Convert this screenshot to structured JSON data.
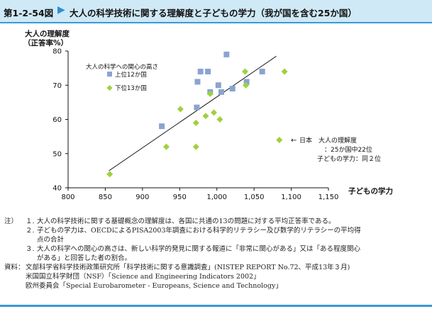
{
  "header": {
    "figure_number": "第1-2-54図",
    "arrow_icon": "right-triangle-icon",
    "title": "大人の科学技術に関する理解度と子どもの学力（我が国を含む25か国）"
  },
  "colors": {
    "header_bg": "#cfe9f6",
    "header_rule": "#3a9ad6",
    "arrow": "#2e8fd0",
    "top13_marker": "#8aa4cf",
    "bottom13_marker": "#9ed13f",
    "trend_line": "#111111",
    "axis": "#111111"
  },
  "chart_data": {
    "type": "scatter",
    "title": "",
    "ylabel_line1": "大人の理解度",
    "ylabel_line2": "（正答率%）",
    "xlabel": "子どもの学力",
    "xlim": [
      800,
      1150
    ],
    "ylim": [
      40,
      80
    ],
    "xticks": [
      "800",
      "850",
      "900",
      "950",
      "1,000",
      "1,050",
      "1,100",
      "1,150"
    ],
    "yticks": [
      "40",
      "50",
      "60",
      "70",
      "80"
    ],
    "xtick_values": [
      800,
      850,
      900,
      950,
      1000,
      1050,
      1100,
      1150
    ],
    "ytick_values": [
      40,
      50,
      60,
      70,
      80
    ],
    "grid": false,
    "legend": {
      "title": "大人の科学への関心の高さ",
      "placement": "top-left",
      "entries": [
        "上位12か国",
        "下位13か国"
      ]
    },
    "series": [
      {
        "name": "上位12か国",
        "marker": "square",
        "points": [
          {
            "x": 926,
            "y": 58
          },
          {
            "x": 973,
            "y": 63.5
          },
          {
            "x": 974,
            "y": 71
          },
          {
            "x": 978,
            "y": 74
          },
          {
            "x": 988,
            "y": 74
          },
          {
            "x": 991,
            "y": 68
          },
          {
            "x": 1002,
            "y": 70
          },
          {
            "x": 1006,
            "y": 68
          },
          {
            "x": 1013,
            "y": 79
          },
          {
            "x": 1021,
            "y": 69
          },
          {
            "x": 1040,
            "y": 71
          },
          {
            "x": 1061,
            "y": 74
          }
        ]
      },
      {
        "name": "下位13か国",
        "marker": "diamond",
        "points": [
          {
            "x": 856,
            "y": 44
          },
          {
            "x": 932,
            "y": 52
          },
          {
            "x": 951,
            "y": 63
          },
          {
            "x": 972,
            "y": 52
          },
          {
            "x": 972,
            "y": 59
          },
          {
            "x": 985,
            "y": 61
          },
          {
            "x": 991,
            "y": 67.5
          },
          {
            "x": 996,
            "y": 62
          },
          {
            "x": 1004,
            "y": 60
          },
          {
            "x": 1038,
            "y": 74
          },
          {
            "x": 1039,
            "y": 70
          },
          {
            "x": 1084,
            "y": 54
          },
          {
            "x": 1091,
            "y": 74
          }
        ]
      }
    ],
    "trend_line": {
      "x1": 855,
      "y1": 45,
      "x2": 1080,
      "y2": 78.5
    },
    "annotation": {
      "arrow": "←",
      "line1": "日本　大人の理解度",
      "line2": "：25か国中22位",
      "line3": "子どもの学力：同２位"
    }
  },
  "notes": {
    "label": "注）",
    "items": [
      {
        "num": "１.",
        "lines": [
          "大人の科学技術に関する基礎概念の理解度は、各国に共通の13の問題に対する平均正答率である。"
        ]
      },
      {
        "num": "２.",
        "lines": [
          "子どもの学力は、OECDによるPISA2003年調査における科学的リテラシー及び数学的リテラシーの平均得",
          "点の合計"
        ]
      },
      {
        "num": "３.",
        "lines": [
          "大人の科学への関心の高さは、新しい科学的発見に関する報道に「非常に関心がある」又は「ある程度関心",
          "がある」と回答した者の割合。"
        ]
      }
    ],
    "source_label": "資料：",
    "sources": [
      "文部科学省科学技術政策研究所「科学技術に関する意識調査」(NISTEP REPORT No.72、平成13年３月)",
      "米国国立科学財団（NSF）「Science and Engineering Indicators 2002」",
      "欧州委員会「Special Eurobarometer - Europeans, Science and Technology」"
    ]
  }
}
